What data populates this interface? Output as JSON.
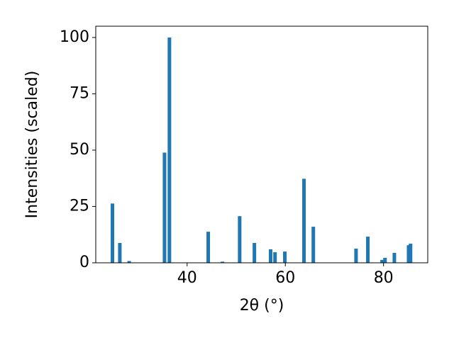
{
  "chart_data": {
    "type": "bar",
    "x_label": "2θ (°)",
    "y_label": "Intensities (scaled)",
    "x": [
      24.8,
      26.3,
      28.2,
      35.4,
      36.4,
      44.3,
      47.2,
      50.7,
      53.7,
      57.0,
      57.9,
      59.9,
      63.8,
      65.7,
      74.4,
      76.8,
      79.7,
      80.3,
      82.2,
      85.1,
      85.5
    ],
    "values": [
      26.3,
      8.8,
      0.8,
      48.9,
      100,
      13.8,
      0.5,
      20.7,
      8.8,
      6.0,
      4.7,
      5.0,
      37.3,
      16.0,
      6.3,
      11.6,
      1.3,
      2.2,
      4.4,
      7.8,
      8.5
    ],
    "color": "#1f77b4",
    "xlim": [
      21.4,
      89.0
    ],
    "xticks": [
      40,
      60,
      80
    ],
    "ylim": [
      0,
      105
    ],
    "yticks": [
      0,
      25,
      50,
      75,
      100
    ],
    "grid": false
  }
}
